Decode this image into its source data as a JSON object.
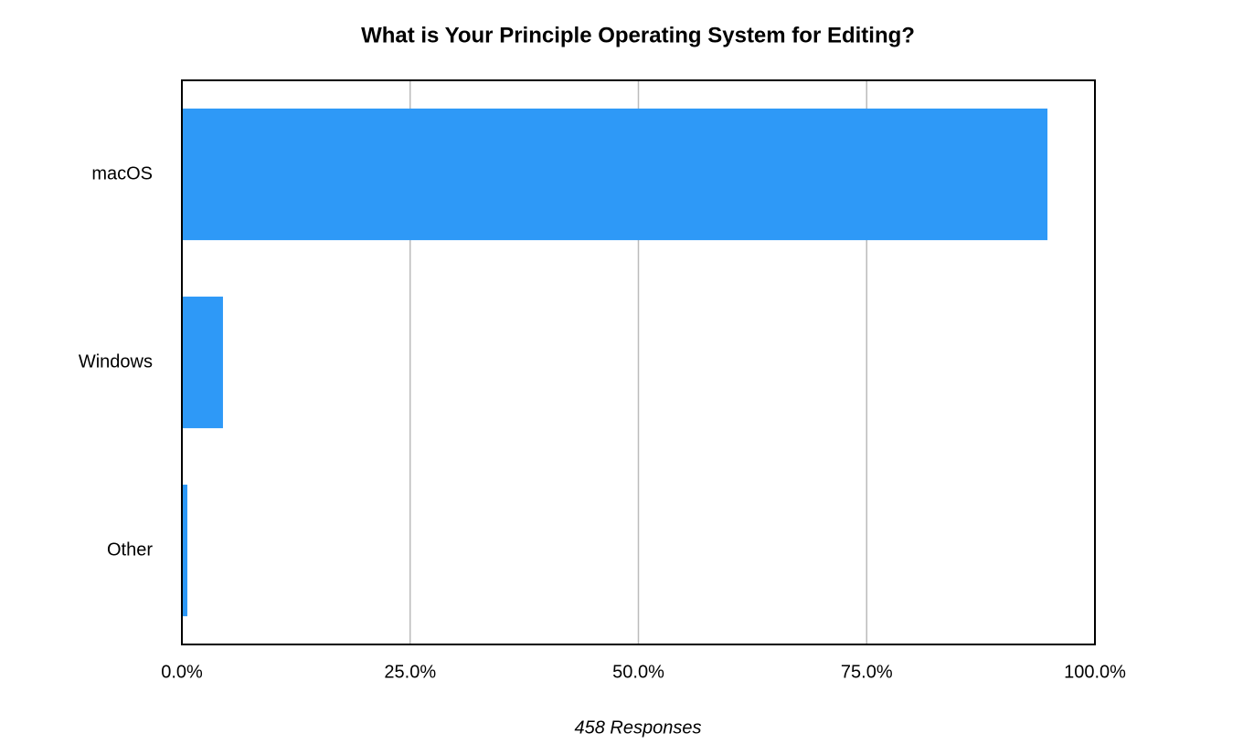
{
  "chart_data": {
    "type": "barh",
    "title": "What is Your Principle Operating System for Editing?",
    "categories": [
      "macOS",
      "Windows",
      "Other"
    ],
    "values": [
      94.8,
      4.5,
      0.6
    ],
    "color": "#2e99f7",
    "xlim": [
      0,
      100
    ],
    "xticks": [
      {
        "value": 0,
        "label": "0.0%"
      },
      {
        "value": 25,
        "label": "25.0%"
      },
      {
        "value": 50,
        "label": "50.0%"
      },
      {
        "value": 75,
        "label": "75.0%"
      },
      {
        "value": 100,
        "label": "100.0%"
      }
    ],
    "xlabel": "458 Responses",
    "grid": true
  }
}
